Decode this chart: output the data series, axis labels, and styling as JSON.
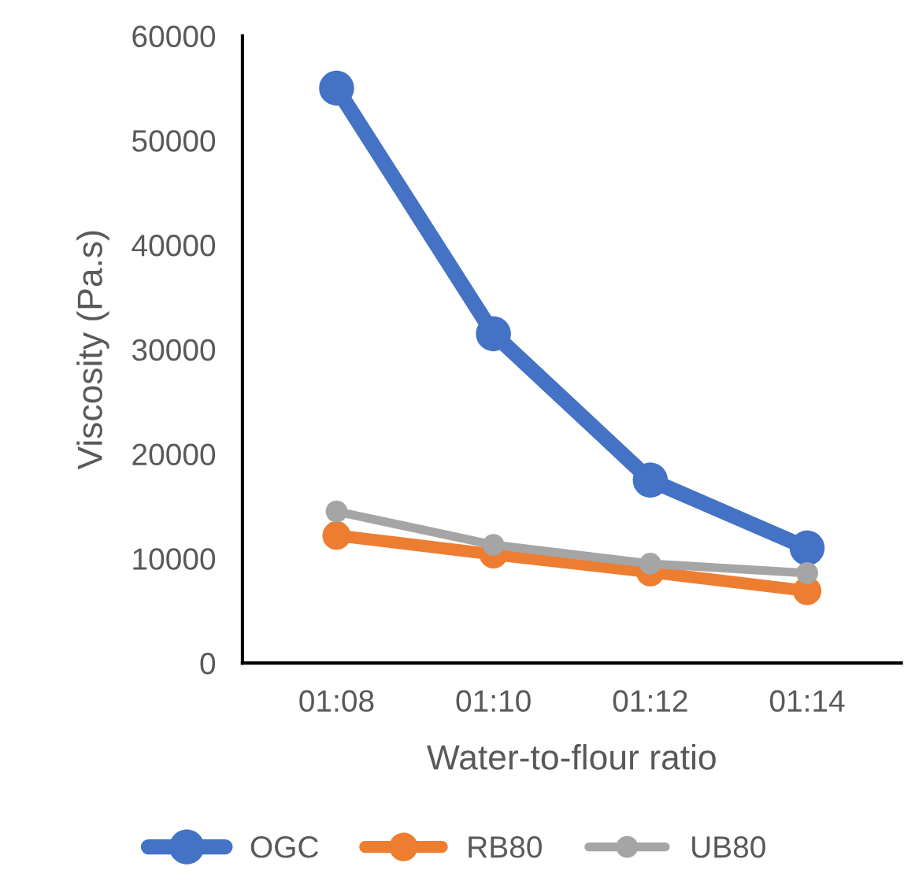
{
  "chart_data": {
    "type": "line",
    "xlabel": "Water-to-flour ratio",
    "ylabel": "Viscosity (Pa.s)",
    "categories": [
      "01:08",
      "01:10",
      "01:12",
      "01:14"
    ],
    "series": [
      {
        "name": "OGC",
        "color": "#4472c4",
        "values": [
          55000,
          31500,
          17500,
          11000
        ]
      },
      {
        "name": "RB80",
        "color": "#ed7d31",
        "values": [
          12200,
          10400,
          8700,
          6900
        ]
      },
      {
        "name": "UB80",
        "color": "#a5a5a5",
        "values": [
          14500,
          11300,
          9500,
          8600
        ]
      }
    ],
    "ylim": [
      0,
      60000
    ],
    "yticks": [
      0,
      10000,
      20000,
      30000,
      40000,
      50000,
      60000
    ],
    "grid": false,
    "legend": "bottom",
    "marker": "circle",
    "line_style": "solid"
  }
}
